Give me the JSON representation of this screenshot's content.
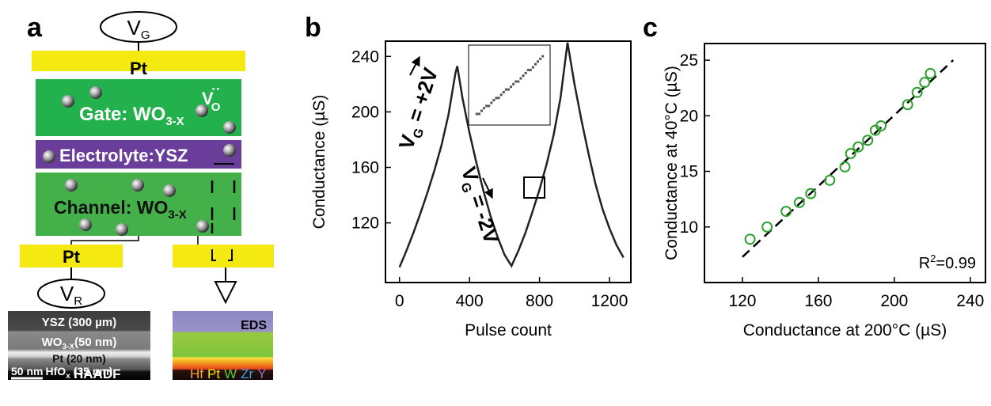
{
  "panel_labels": [
    "a",
    "b",
    "c"
  ],
  "diagram": {
    "top_terminal": {
      "label": "V",
      "sub": "G"
    },
    "gate_contact": "Pt",
    "gate": {
      "label": "Gate: WO",
      "sub": "3-X"
    },
    "vacancy": {
      "label": "V",
      "sub": "O",
      "sup": "··"
    },
    "electrolyte": "Electrolyte:YSZ",
    "channel": {
      "label": "Channel: WO",
      "sub": "3-X"
    },
    "source_contact": "Pt",
    "bottom_terminal": {
      "label": "V",
      "sub": "R"
    },
    "haadf": {
      "layers": [
        {
          "label": "YSZ (300 µm)"
        },
        {
          "label": "WO",
          "sub": "3-X",
          "rest": "(50 nm)"
        },
        {
          "label": "Pt (20 nm)"
        },
        {
          "label": "HfO",
          "sub": "x",
          "rest": " (35 nm)"
        }
      ],
      "scale_bar": "50 nm",
      "mode": "HAADF"
    },
    "eds": {
      "mode": "EDS",
      "elements": [
        {
          "label": "Hf",
          "color": "#f5a623"
        },
        {
          "label": "Pt",
          "color": "#f2e400"
        },
        {
          "label": "W",
          "color": "#5dc832"
        },
        {
          "label": "Zr",
          "color": "#33a6e0"
        },
        {
          "label": "Y",
          "color": "#9a6acb"
        }
      ]
    }
  },
  "chart_data": [
    {
      "type": "line",
      "xlabel": "Pulse count",
      "ylabel": "Conductance (µS)",
      "color": "#222222",
      "x": [
        0,
        40,
        80,
        120,
        160,
        200,
        240,
        280,
        320,
        330,
        360,
        400,
        440,
        480,
        520,
        560,
        600,
        640,
        680,
        720,
        760,
        800,
        840,
        880,
        920,
        960,
        1000,
        1040,
        1080,
        1120,
        1160,
        1200,
        1240,
        1280
      ],
      "values": [
        88,
        100,
        113,
        127,
        142,
        158,
        176,
        198,
        228,
        233,
        210,
        185,
        163,
        143,
        125,
        110,
        97,
        89,
        100,
        113,
        128,
        144,
        162,
        183,
        210,
        250,
        220,
        194,
        170,
        148,
        130,
        116,
        104,
        95
      ],
      "xlim": [
        -80,
        1322
      ],
      "ylim": [
        77,
        251
      ],
      "xticks": [
        0,
        400,
        800,
        1200
      ],
      "yticks": [
        120,
        160,
        200,
        240
      ],
      "annotations": [
        {
          "label": "V",
          "sub": "G",
          "rest": " = +2V"
        },
        {
          "label": "V",
          "sub": "G",
          "rest": " = -2V"
        }
      ],
      "inset": {
        "x": [
          745,
          748,
          751,
          754,
          757,
          760,
          763,
          766,
          769,
          772,
          775,
          778,
          781,
          784,
          787,
          790,
          793,
          796,
          799,
          802,
          805,
          808,
          811,
          814,
          817,
          820,
          823,
          826
        ],
        "values": [
          138.5,
          138.5,
          139.2,
          139.8,
          140.3,
          140.3,
          141,
          141.6,
          142.1,
          142.1,
          142.8,
          143.4,
          144,
          144,
          144.6,
          145.2,
          145.8,
          145.8,
          146.5,
          147.1,
          147.7,
          148.4,
          148.4,
          149,
          149.7,
          150.3,
          150.9,
          151.5
        ],
        "xlim": [
          735,
          835
        ],
        "ylim": [
          136,
          154
        ],
        "color": "#555555"
      }
    },
    {
      "type": "scatter",
      "xlabel": "Conductance at 200°C (µS)",
      "ylabel": "Conductance at 40°C (µS)",
      "color": "#2ca02c",
      "x": [
        124,
        133,
        143,
        150,
        156,
        166,
        174,
        177,
        181,
        186,
        190,
        193,
        207,
        212,
        216,
        219
      ],
      "values": [
        8.9,
        10,
        11.4,
        12.2,
        13,
        14.2,
        15.4,
        16.6,
        17.2,
        17.8,
        18.7,
        19.1,
        21,
        22.1,
        23,
        23.8
      ],
      "fit": {
        "x": [
          120,
          231
        ],
        "values": [
          7.3,
          25
        ]
      },
      "xlim": [
        100,
        248
      ],
      "ylim": [
        5,
        26.5
      ],
      "xticks": [
        120,
        160,
        200,
        240
      ],
      "yticks": [
        10,
        15,
        20,
        25
      ],
      "annotation": {
        "label": "R",
        "sup": "2",
        "rest": "=0.99"
      }
    }
  ]
}
